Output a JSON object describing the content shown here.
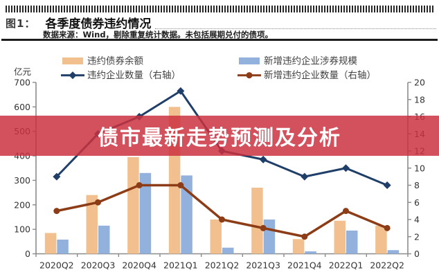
{
  "header": {
    "figure_label": "图1：",
    "title": "各季度债券违约情况",
    "source_note": "数据来源：Wind，剔除重复统计数据。未包括展期兑付的债项。"
  },
  "overlay": {
    "text": "债市最新走势预测及分析",
    "background_rgba": "rgba(203,48,62,0.84)",
    "text_color": "#ffffff"
  },
  "chart_data": {
    "type": "bar+line combo",
    "categories": [
      "2020Q2",
      "2020Q3",
      "2020Q4",
      "2021Q1",
      "2021Q2",
      "2021Q3",
      "2021Q4",
      "2022Q1",
      "2022Q2"
    ],
    "series": [
      {
        "name": "违约债券余额",
        "type": "bar",
        "axis": "left",
        "color": "#F2C08F",
        "values": [
          85,
          240,
          395,
          600,
          140,
          270,
          60,
          135,
          115
        ]
      },
      {
        "name": "新增违约企业涉券规模",
        "type": "bar",
        "axis": "left",
        "color": "#92B1DC",
        "values": [
          58,
          115,
          330,
          320,
          25,
          140,
          10,
          95,
          15
        ]
      },
      {
        "name": "违约企业数量（右轴）",
        "type": "line",
        "axis": "right",
        "marker": "diamond",
        "color": "#1F3F69",
        "values": [
          9,
          14,
          16,
          19,
          12,
          11,
          9,
          10,
          8
        ]
      },
      {
        "name": "新增违约企业数量（右轴）",
        "type": "line",
        "axis": "right",
        "marker": "circle",
        "color": "#8C3C16",
        "values": [
          5,
          6,
          8,
          8,
          4,
          3,
          2,
          5,
          3
        ]
      }
    ],
    "left_axis": {
      "label": "亿元",
      "min": 0,
      "max": 700,
      "step": 100
    },
    "right_axis": {
      "min": 0,
      "max": 20,
      "step": 2
    },
    "legend_position": "top",
    "grid": false,
    "axis_color": "#8a8a8a",
    "tick_label_color": "#333333"
  }
}
